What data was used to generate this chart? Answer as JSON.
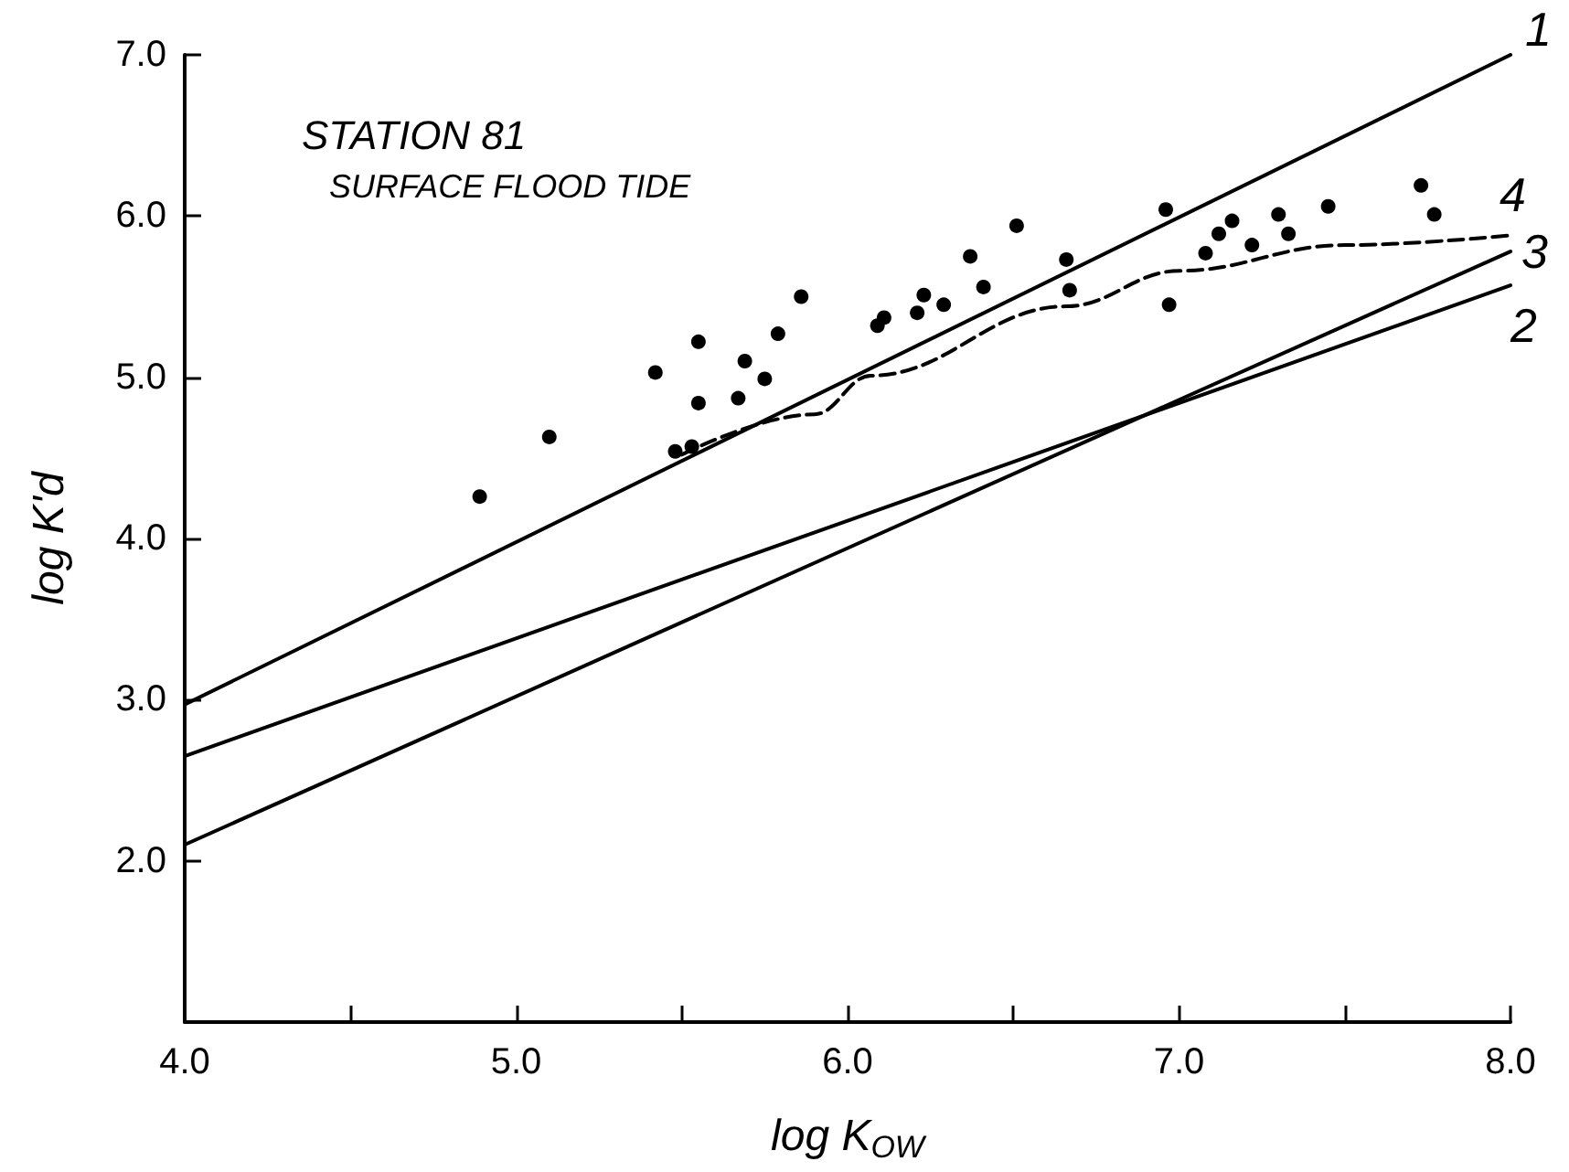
{
  "chart_data": {
    "type": "scatter",
    "title": "STATION 81",
    "subtitle": "SURFACE FLOOD TIDE",
    "xlabel": "log K$_{OW}$",
    "ylabel": "log K'd",
    "xlim": [
      4,
      8
    ],
    "ylim": [
      1,
      7
    ],
    "xticks": [
      {
        "value": 4,
        "label": "4.0"
      },
      {
        "value": 4.5,
        "label": null
      },
      {
        "value": 5,
        "label": "5.0"
      },
      {
        "value": 5.5,
        "label": null
      },
      {
        "value": 6,
        "label": "6.0"
      },
      {
        "value": 6.5,
        "label": null
      },
      {
        "value": 7,
        "label": "7.0"
      },
      {
        "value": 7.5,
        "label": null
      },
      {
        "value": 8,
        "label": "8.0"
      }
    ],
    "yticks": [
      {
        "value": 2,
        "label": "2.0"
      },
      {
        "value": 3,
        "label": "3.0"
      },
      {
        "value": 4,
        "label": "4.0"
      },
      {
        "value": 5,
        "label": "5.0"
      },
      {
        "value": 6,
        "label": "6.0"
      },
      {
        "value": 7,
        "label": "7.0"
      }
    ],
    "grid": false,
    "legend": false,
    "series": [
      {
        "color": "#000000",
        "marker": "circle",
        "x": [
          4.89,
          5.1,
          5.42,
          5.55,
          5.55,
          5.48,
          5.53,
          5.67,
          5.69,
          5.75,
          5.79,
          5.86,
          6.09,
          6.11,
          6.21,
          6.23,
          6.29,
          6.37,
          6.41,
          6.51,
          6.66,
          6.67,
          6.97,
          6.96,
          7.08,
          7.12,
          7.16,
          7.22,
          7.3,
          7.33,
          7.45,
          7.73,
          7.77
        ],
        "values": [
          4.26,
          4.63,
          5.03,
          5.22,
          4.84,
          4.54,
          4.57,
          4.87,
          5.1,
          4.99,
          5.27,
          5.5,
          5.32,
          5.37,
          5.4,
          5.51,
          5.45,
          5.75,
          5.56,
          5.94,
          5.73,
          5.54,
          5.45,
          6.04,
          5.77,
          5.89,
          5.97,
          5.82,
          6.01,
          5.89,
          6.06,
          6.19,
          6.01
        ]
      },
      {
        "type": "line",
        "name": "1",
        "color": "#000000",
        "marker": "none",
        "line_style": "solid",
        "x": [
          4,
          8
        ],
        "values": [
          2.97,
          7.0
        ]
      },
      {
        "type": "line",
        "name": "2",
        "color": "#000000",
        "marker": "none",
        "line_style": "solid",
        "x": [
          4,
          8
        ],
        "values": [
          2.65,
          5.57
        ]
      },
      {
        "type": "line",
        "name": "3",
        "color": "#000000",
        "marker": "none",
        "line_style": "solid",
        "x": [
          4,
          8
        ],
        "values": [
          2.1,
          5.78
        ]
      },
      {
        "type": "line",
        "name": "4",
        "color": "#000000",
        "marker": "none",
        "line_style": "dashed",
        "x": [
          5.5,
          5.9,
          6.07,
          6.66,
          7.0,
          7.5,
          8.0
        ],
        "values": [
          4.52,
          4.77,
          5.01,
          5.44,
          5.66,
          5.82,
          5.88
        ]
      }
    ]
  }
}
